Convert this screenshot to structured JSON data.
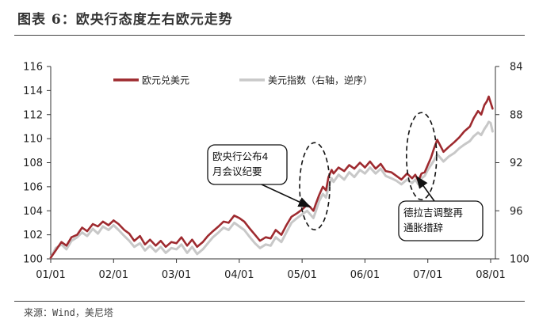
{
  "figure_title": "图表 6：欧央行态度左右欧元走势",
  "source": "来源：Wind，美尼塔",
  "chart_data": {
    "type": "line",
    "title": "",
    "x_ticks": [
      "01/01",
      "02/01",
      "03/01",
      "04/01",
      "05/01",
      "06/01",
      "07/01",
      "08/01"
    ],
    "x_range": [
      0,
      7
    ],
    "y_left": {
      "range": [
        100,
        116
      ],
      "ticks": [
        100,
        102,
        104,
        106,
        108,
        110,
        112,
        114,
        116
      ]
    },
    "y_right": {
      "range": [
        84,
        100
      ],
      "ticks": [
        84,
        88,
        92,
        96,
        100
      ],
      "inverted": true
    },
    "grid": false,
    "legend_position": "top-center",
    "series": [
      {
        "name": "欧元兑美元",
        "axis": "left",
        "color": "#9e2a2f",
        "points": [
          [
            0.0,
            100.1
          ],
          [
            0.08,
            100.7
          ],
          [
            0.17,
            101.4
          ],
          [
            0.25,
            101.1
          ],
          [
            0.33,
            101.8
          ],
          [
            0.42,
            102.0
          ],
          [
            0.5,
            102.6
          ],
          [
            0.58,
            102.3
          ],
          [
            0.67,
            102.9
          ],
          [
            0.75,
            102.7
          ],
          [
            0.83,
            103.1
          ],
          [
            0.92,
            102.8
          ],
          [
            1.0,
            103.2
          ],
          [
            1.08,
            102.9
          ],
          [
            1.17,
            102.4
          ],
          [
            1.25,
            102.1
          ],
          [
            1.33,
            101.5
          ],
          [
            1.42,
            101.9
          ],
          [
            1.5,
            101.2
          ],
          [
            1.58,
            101.6
          ],
          [
            1.67,
            101.1
          ],
          [
            1.75,
            101.5
          ],
          [
            1.83,
            101.0
          ],
          [
            1.92,
            101.4
          ],
          [
            2.0,
            101.3
          ],
          [
            2.08,
            101.8
          ],
          [
            2.17,
            101.1
          ],
          [
            2.25,
            101.6
          ],
          [
            2.33,
            101.0
          ],
          [
            2.42,
            101.4
          ],
          [
            2.5,
            101.9
          ],
          [
            2.58,
            102.3
          ],
          [
            2.67,
            102.7
          ],
          [
            2.75,
            103.1
          ],
          [
            2.83,
            103.0
          ],
          [
            2.92,
            103.6
          ],
          [
            3.0,
            103.4
          ],
          [
            3.08,
            103.1
          ],
          [
            3.17,
            102.5
          ],
          [
            3.25,
            102.0
          ],
          [
            3.33,
            101.5
          ],
          [
            3.42,
            101.8
          ],
          [
            3.5,
            101.7
          ],
          [
            3.58,
            102.4
          ],
          [
            3.67,
            102.0
          ],
          [
            3.75,
            102.8
          ],
          [
            3.83,
            103.5
          ],
          [
            3.92,
            103.8
          ],
          [
            4.0,
            104.1
          ],
          [
            4.08,
            104.5
          ],
          [
            4.13,
            104.3
          ],
          [
            4.18,
            104.0
          ],
          [
            4.22,
            104.6
          ],
          [
            4.27,
            105.3
          ],
          [
            4.33,
            106.0
          ],
          [
            4.38,
            105.7
          ],
          [
            4.42,
            106.8
          ],
          [
            4.47,
            107.4
          ],
          [
            4.5,
            107.1
          ],
          [
            4.58,
            107.6
          ],
          [
            4.67,
            107.3
          ],
          [
            4.75,
            107.8
          ],
          [
            4.83,
            107.5
          ],
          [
            4.92,
            108.0
          ],
          [
            5.0,
            107.6
          ],
          [
            5.08,
            108.1
          ],
          [
            5.17,
            107.5
          ],
          [
            5.25,
            107.9
          ],
          [
            5.33,
            107.3
          ],
          [
            5.42,
            107.2
          ],
          [
            5.5,
            106.9
          ],
          [
            5.58,
            106.6
          ],
          [
            5.67,
            107.1
          ],
          [
            5.75,
            106.7
          ],
          [
            5.8,
            107.0
          ],
          [
            5.85,
            106.5
          ],
          [
            5.9,
            107.1
          ],
          [
            5.95,
            107.2
          ],
          [
            6.0,
            107.8
          ],
          [
            6.05,
            108.4
          ],
          [
            6.1,
            109.2
          ],
          [
            6.15,
            109.9
          ],
          [
            6.2,
            109.4
          ],
          [
            6.25,
            108.9
          ],
          [
            6.33,
            109.3
          ],
          [
            6.42,
            109.7
          ],
          [
            6.5,
            110.1
          ],
          [
            6.58,
            110.6
          ],
          [
            6.67,
            111.0
          ],
          [
            6.73,
            111.7
          ],
          [
            6.8,
            112.3
          ],
          [
            6.85,
            112.0
          ],
          [
            6.9,
            112.8
          ],
          [
            6.94,
            113.1
          ],
          [
            6.97,
            113.5
          ],
          [
            7.0,
            113.0
          ],
          [
            7.03,
            112.5
          ]
        ]
      },
      {
        "name": "美元指数（右轴，逆序）",
        "axis": "right",
        "color": "#c8c8c8",
        "points": [
          [
            0.0,
            99.9
          ],
          [
            0.08,
            99.1
          ],
          [
            0.17,
            98.8
          ],
          [
            0.25,
            99.2
          ],
          [
            0.33,
            98.5
          ],
          [
            0.42,
            98.2
          ],
          [
            0.5,
            97.8
          ],
          [
            0.58,
            98.1
          ],
          [
            0.67,
            97.5
          ],
          [
            0.75,
            97.9
          ],
          [
            0.83,
            97.3
          ],
          [
            0.92,
            97.6
          ],
          [
            1.0,
            97.2
          ],
          [
            1.08,
            97.6
          ],
          [
            1.17,
            98.1
          ],
          [
            1.25,
            98.5
          ],
          [
            1.33,
            99.0
          ],
          [
            1.42,
            98.7
          ],
          [
            1.5,
            99.3
          ],
          [
            1.58,
            98.9
          ],
          [
            1.67,
            99.4
          ],
          [
            1.75,
            99.0
          ],
          [
            1.83,
            99.5
          ],
          [
            1.92,
            99.1
          ],
          [
            2.0,
            99.2
          ],
          [
            2.08,
            98.8
          ],
          [
            2.17,
            99.5
          ],
          [
            2.25,
            99.0
          ],
          [
            2.33,
            99.6
          ],
          [
            2.42,
            99.2
          ],
          [
            2.5,
            98.7
          ],
          [
            2.58,
            98.2
          ],
          [
            2.67,
            97.8
          ],
          [
            2.75,
            97.4
          ],
          [
            2.83,
            97.6
          ],
          [
            2.92,
            97.0
          ],
          [
            3.0,
            97.3
          ],
          [
            3.08,
            97.6
          ],
          [
            3.17,
            98.2
          ],
          [
            3.25,
            98.7
          ],
          [
            3.33,
            99.1
          ],
          [
            3.42,
            98.8
          ],
          [
            3.5,
            98.9
          ],
          [
            3.58,
            98.2
          ],
          [
            3.67,
            98.6
          ],
          [
            3.75,
            97.8
          ],
          [
            3.83,
            97.0
          ],
          [
            3.92,
            96.6
          ],
          [
            4.0,
            96.3
          ],
          [
            4.08,
            96.0
          ],
          [
            4.13,
            96.3
          ],
          [
            4.18,
            96.6
          ],
          [
            4.22,
            96.0
          ],
          [
            4.27,
            95.2
          ],
          [
            4.33,
            94.6
          ],
          [
            4.38,
            94.9
          ],
          [
            4.42,
            94.0
          ],
          [
            4.47,
            93.3
          ],
          [
            4.5,
            93.6
          ],
          [
            4.58,
            93.0
          ],
          [
            4.67,
            93.4
          ],
          [
            4.75,
            92.8
          ],
          [
            4.83,
            93.2
          ],
          [
            4.92,
            92.6
          ],
          [
            5.0,
            92.9
          ],
          [
            5.08,
            92.4
          ],
          [
            5.17,
            92.9
          ],
          [
            5.25,
            92.5
          ],
          [
            5.33,
            93.1
          ],
          [
            5.42,
            93.3
          ],
          [
            5.5,
            93.5
          ],
          [
            5.58,
            93.8
          ],
          [
            5.67,
            93.4
          ],
          [
            5.75,
            93.7
          ],
          [
            5.8,
            93.4
          ],
          [
            5.85,
            93.8
          ],
          [
            5.9,
            93.3
          ],
          [
            5.95,
            93.1
          ],
          [
            6.0,
            92.6
          ],
          [
            6.05,
            92.2
          ],
          [
            6.1,
            91.8
          ],
          [
            6.15,
            91.3
          ],
          [
            6.2,
            91.6
          ],
          [
            6.25,
            91.9
          ],
          [
            6.33,
            91.5
          ],
          [
            6.42,
            91.2
          ],
          [
            6.5,
            90.8
          ],
          [
            6.58,
            90.5
          ],
          [
            6.67,
            90.2
          ],
          [
            6.73,
            89.8
          ],
          [
            6.8,
            89.5
          ],
          [
            6.85,
            89.7
          ],
          [
            6.9,
            89.2
          ],
          [
            6.94,
            88.9
          ],
          [
            6.97,
            88.6
          ],
          [
            7.0,
            88.7
          ],
          [
            7.03,
            89.4
          ]
        ]
      }
    ],
    "annotations": [
      {
        "id": "ecb-minutes",
        "lines": [
          "欧央行公布4",
          "月会议纪要"
        ],
        "target": [
          4.15,
          104.2
        ]
      },
      {
        "id": "draghi",
        "lines": [
          "德拉吉调整再",
          "通胀措辞"
        ],
        "target": [
          5.85,
          106.7
        ]
      }
    ]
  }
}
